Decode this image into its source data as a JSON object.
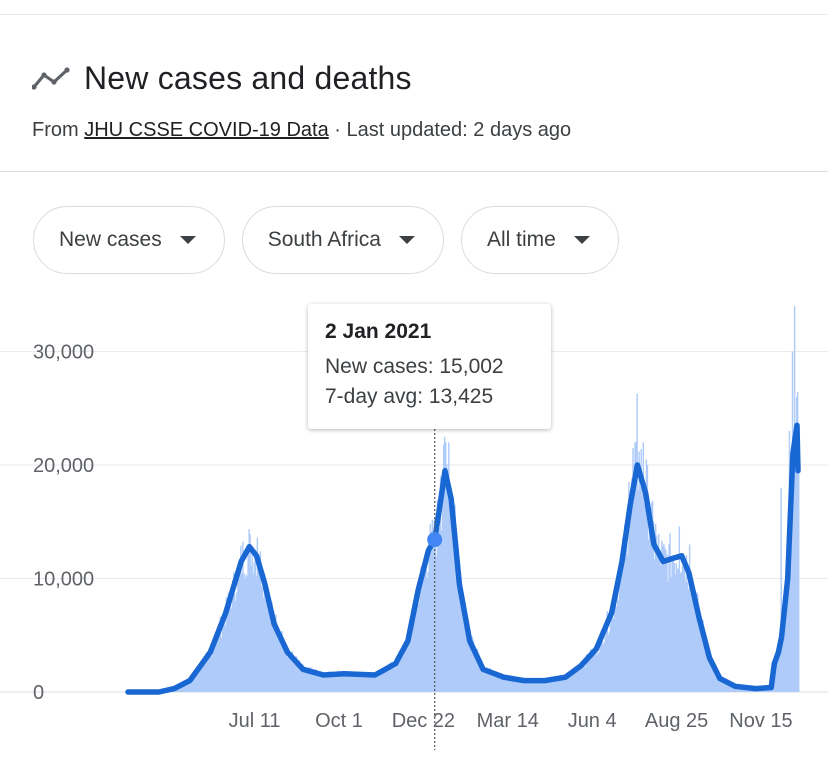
{
  "header": {
    "title": "New cases and deaths",
    "source_prefix": "From ",
    "source_link": "JHU CSSE COVID-19 Data",
    "source_suffix": " · Last updated: 2 days ago"
  },
  "filters": [
    {
      "label": "New cases"
    },
    {
      "label": "South Africa"
    },
    {
      "label": "All time"
    }
  ],
  "tooltip": {
    "date": "2 Jan 2021",
    "new_cases": "New cases: 15,002",
    "avg": "7-day avg: 13,425"
  },
  "colors": {
    "line": "#1967d2",
    "bars": "#aecbfa",
    "grid": "#e8eaed",
    "marker": "#4285f4"
  },
  "chart_data": {
    "type": "area",
    "title": "New cases and deaths",
    "series_name": "7-day avg",
    "y_ticks": [
      {
        "value": 0,
        "label": "0"
      },
      {
        "value": 10000,
        "label": "10,000"
      },
      {
        "value": 20000,
        "label": "20,000"
      },
      {
        "value": 30000,
        "label": "30,000"
      }
    ],
    "ylim": [
      0,
      35000
    ],
    "x_ticks": [
      {
        "day": 123,
        "label": "Jul 11"
      },
      {
        "day": 205,
        "label": "Oct 1"
      },
      {
        "day": 287,
        "label": "Dec 22"
      },
      {
        "day": 369,
        "label": "Mar 14"
      },
      {
        "day": 451,
        "label": "Jun 4"
      },
      {
        "day": 533,
        "label": "Aug 25"
      },
      {
        "day": 615,
        "label": "Nov 15"
      }
    ],
    "xlim": [
      0,
      651
    ],
    "highlight": {
      "day": 298,
      "value": 13425
    },
    "avg_points": [
      [
        0,
        0
      ],
      [
        30,
        0
      ],
      [
        45,
        300
      ],
      [
        60,
        1000
      ],
      [
        80,
        3500
      ],
      [
        95,
        7000
      ],
      [
        110,
        11500
      ],
      [
        118,
        12800
      ],
      [
        125,
        12000
      ],
      [
        133,
        9500
      ],
      [
        142,
        6000
      ],
      [
        155,
        3500
      ],
      [
        170,
        2000
      ],
      [
        190,
        1500
      ],
      [
        210,
        1600
      ],
      [
        240,
        1500
      ],
      [
        260,
        2500
      ],
      [
        272,
        4500
      ],
      [
        282,
        9000
      ],
      [
        292,
        12500
      ],
      [
        298,
        13425
      ],
      [
        304,
        17000
      ],
      [
        308,
        19500
      ],
      [
        314,
        17000
      ],
      [
        322,
        9500
      ],
      [
        332,
        4500
      ],
      [
        345,
        2000
      ],
      [
        365,
        1300
      ],
      [
        385,
        1000
      ],
      [
        405,
        1000
      ],
      [
        425,
        1300
      ],
      [
        440,
        2300
      ],
      [
        455,
        3800
      ],
      [
        470,
        7000
      ],
      [
        480,
        11500
      ],
      [
        488,
        16500
      ],
      [
        495,
        20000
      ],
      [
        503,
        17500
      ],
      [
        511,
        13000
      ],
      [
        520,
        11500
      ],
      [
        530,
        11800
      ],
      [
        538,
        12000
      ],
      [
        545,
        10500
      ],
      [
        555,
        6500
      ],
      [
        565,
        3000
      ],
      [
        575,
        1200
      ],
      [
        590,
        500
      ],
      [
        610,
        300
      ],
      [
        625,
        400
      ],
      [
        628,
        2500
      ],
      [
        632,
        3500
      ],
      [
        635,
        4800
      ],
      [
        641,
        10000
      ],
      [
        646,
        21000
      ],
      [
        650,
        23500
      ],
      [
        651,
        19500
      ]
    ],
    "bar_spikes": [
      [
        118,
        13900
      ],
      [
        125,
        13600
      ],
      [
        303,
        19000
      ],
      [
        306,
        21800
      ],
      [
        311,
        22000
      ],
      [
        317,
        16500
      ],
      [
        486,
        18500
      ],
      [
        490,
        21500
      ],
      [
        494,
        26300
      ],
      [
        500,
        22000
      ],
      [
        512,
        14800
      ],
      [
        535,
        14600
      ],
      [
        545,
        13000
      ],
      [
        634,
        18000
      ],
      [
        642,
        23000
      ],
      [
        645,
        30000
      ],
      [
        647,
        34000
      ],
      [
        649,
        26000
      ]
    ]
  }
}
